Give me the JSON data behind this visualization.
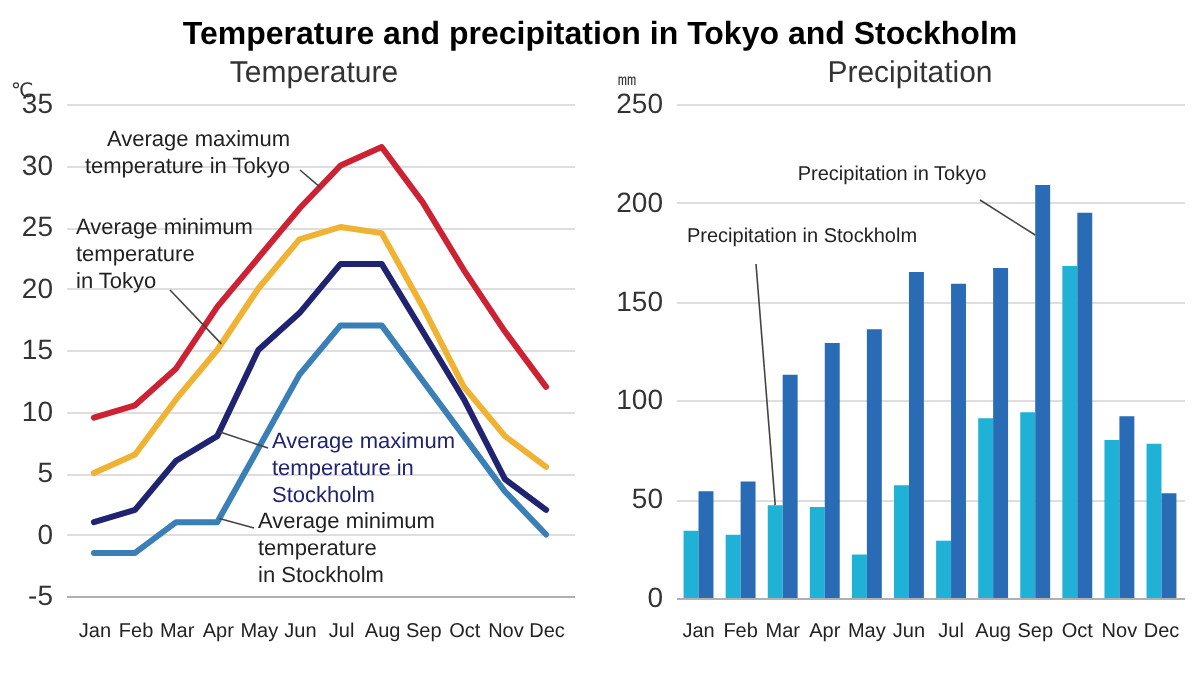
{
  "chart_data": [
    {
      "type": "line",
      "title": "Temperature and precipitation in Tokyo and Stockholm",
      "subtitle": "Temperature",
      "ylabel": "℃",
      "categories": [
        "Jan",
        "Feb",
        "Mar",
        "Apr",
        "May",
        "Jun",
        "Jul",
        "Aug",
        "Sep",
        "Oct",
        "Nov",
        "Dec"
      ],
      "series": [
        {
          "name": "Average maximum temperature in Tokyo",
          "color": "#cc2233",
          "values": [
            9.5,
            10.5,
            13.5,
            18.5,
            22.5,
            26.5,
            30,
            31.5,
            27,
            21.5,
            16.5,
            12
          ]
        },
        {
          "name": "Average minimum temperature in Tokyo",
          "color": "#f0b232",
          "values": [
            5,
            6.5,
            11,
            15,
            20,
            24,
            25,
            24.5,
            18.5,
            12,
            8,
            5.5
          ]
        },
        {
          "name": "Average maximum temperature in Stockholm",
          "color": "#1f2370",
          "values": [
            1,
            2,
            6,
            8,
            15,
            18,
            22,
            22,
            16.5,
            11,
            4.5,
            2
          ]
        },
        {
          "name": "Average minimum temperature in Stockholm",
          "color": "#3a80b6",
          "values": [
            -1.5,
            -1.5,
            1,
            1,
            7,
            13,
            17,
            17,
            12.5,
            8,
            3.5,
            0
          ]
        }
      ],
      "ylim": [
        -5,
        35
      ],
      "yticks": [
        -5,
        0,
        5,
        10,
        15,
        20,
        25,
        30,
        35
      ],
      "grid": "y"
    },
    {
      "type": "bar",
      "subtitle": "Precipitation",
      "ylabel": "㎜",
      "categories": [
        "Jan",
        "Feb",
        "Mar",
        "Apr",
        "May",
        "Jun",
        "Jul",
        "Aug",
        "Sep",
        "Oct",
        "Nov",
        "Dec"
      ],
      "series": [
        {
          "name": "Precipitation in Stockholm",
          "color": "#1fb2d6",
          "values": [
            34,
            32,
            47,
            46,
            22,
            57,
            29,
            91,
            94,
            168,
            80,
            78
          ]
        },
        {
          "name": "Precipitation in Tokyo",
          "color": "#2a6bb6",
          "values": [
            54,
            59,
            113,
            129,
            136,
            165,
            159,
            167,
            209,
            195,
            92,
            53
          ]
        }
      ],
      "ylim": [
        0,
        250
      ],
      "yticks": [
        0,
        50,
        100,
        150,
        200,
        250
      ],
      "grid": "y"
    }
  ]
}
